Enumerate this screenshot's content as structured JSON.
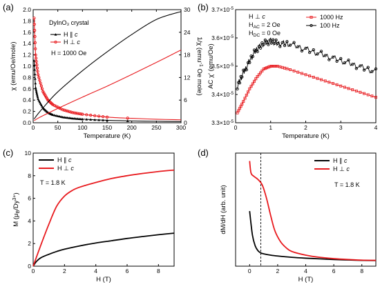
{
  "chart_data": [
    {
      "panel": "(a)",
      "type": "line",
      "xlabel": "Temperature (K)",
      "ylabel": "χ (emu/Oe/mole)",
      "ylabel_right": "1/χ (emu⁻¹ Oe mole)",
      "xlim": [
        0,
        300
      ],
      "ylim": [
        0,
        2.0
      ],
      "ylim_right": [
        0,
        30
      ],
      "xticks": [
        "0",
        "50",
        "100",
        "150",
        "200",
        "250",
        "300"
      ],
      "yticks": [
        "0.0",
        "0.2",
        "0.4",
        "0.6",
        "0.8",
        "1.0",
        "1.2",
        "1.4",
        "1.6",
        "1.8",
        "2.0"
      ],
      "yticks_right": [
        "0",
        "6",
        "12",
        "18",
        "24",
        "30"
      ],
      "annotations": [
        "DyInO₃ crystal",
        "H = 1000 Oe"
      ],
      "legend": [
        "H ∥ c",
        "H ⊥ c"
      ],
      "legend_position": "top-left",
      "series": [
        {
          "name": "H ∥ c",
          "axis": "left",
          "color": "#000000",
          "marker": "triangle",
          "x": [
            2,
            5,
            10,
            20,
            30,
            40,
            60,
            80,
            100,
            150,
            200,
            250,
            300
          ],
          "y": [
            1.1,
            0.62,
            0.42,
            0.26,
            0.18,
            0.14,
            0.1,
            0.078,
            0.064,
            0.043,
            0.032,
            0.026,
            0.021
          ]
        },
        {
          "name": "H ⊥ c",
          "axis": "left",
          "color": "#e8191d",
          "marker": "circle",
          "x": [
            2,
            5,
            10,
            20,
            30,
            40,
            60,
            80,
            100,
            150,
            200,
            250,
            300
          ],
          "y": [
            1.85,
            1.2,
            0.85,
            0.55,
            0.4,
            0.32,
            0.23,
            0.18,
            0.15,
            0.1,
            0.078,
            0.062,
            0.052
          ]
        },
        {
          "name": "1/χ H ∥ c",
          "axis": "right",
          "color": "#000000",
          "x": [
            2,
            10,
            25,
            50,
            100,
            150,
            200,
            250,
            300
          ],
          "y": [
            1.0,
            2.4,
            4.7,
            8.2,
            13.8,
            18.8,
            23.4,
            27.4,
            29.5
          ]
        },
        {
          "name": "1/χ H ⊥ c",
          "axis": "right",
          "color": "#e8191d",
          "x": [
            2,
            10,
            25,
            50,
            100,
            150,
            200,
            250,
            300
          ],
          "y": [
            0.55,
            1.2,
            2.2,
            3.8,
            6.8,
            9.7,
            12.8,
            16.0,
            19.3
          ]
        }
      ]
    },
    {
      "panel": "(b)",
      "type": "line",
      "xlabel": "Temperature (K)",
      "ylabel": "AC χ' (emu/Oe)",
      "xlim": [
        0,
        4
      ],
      "ylim": [
        3.3e-05,
        3.7e-05
      ],
      "xticks": [
        "0",
        "1",
        "2",
        "3",
        "4"
      ],
      "yticks": [
        "3.3×10⁻⁵",
        "3.4×10⁻⁵",
        "3.5×10⁻⁵",
        "3.6×10⁻⁵",
        "3.7×10⁻⁵"
      ],
      "annotations": [
        "H ⊥ c",
        "H_AC = 2 Oe",
        "H_DC = 0 Oe"
      ],
      "legend": [
        "1000 Hz",
        "100 Hz"
      ],
      "legend_position": "top-right",
      "series": [
        {
          "name": "1000 Hz",
          "color": "#e8191d",
          "marker": "square",
          "x": [
            0.05,
            0.2,
            0.4,
            0.6,
            0.8,
            1.0,
            1.2,
            1.5,
            2.0,
            2.5,
            3.0,
            3.5,
            4.0
          ],
          "y": [
            3.335e-05,
            3.37e-05,
            3.42e-05,
            3.46e-05,
            3.49e-05,
            3.5e-05,
            3.5e-05,
            3.49e-05,
            3.47e-05,
            3.45e-05,
            3.43e-05,
            3.41e-05,
            3.39e-05
          ]
        },
        {
          "name": "100 Hz",
          "color": "#000000",
          "marker": "circle",
          "x": [
            0.05,
            0.2,
            0.4,
            0.6,
            0.8,
            1.0,
            1.2,
            1.5,
            2.0,
            2.5,
            3.0,
            3.5,
            4.0
          ],
          "y": [
            3.43e-05,
            3.47e-05,
            3.52e-05,
            3.56e-05,
            3.58e-05,
            3.59e-05,
            3.58e-05,
            3.58e-05,
            3.56e-05,
            3.54e-05,
            3.52e-05,
            3.5e-05,
            3.48e-05
          ]
        }
      ]
    },
    {
      "panel": "(c)",
      "type": "line",
      "xlabel": "H (T)",
      "ylabel": "M (μB/Dy³⁺)",
      "xlim": [
        0,
        9
      ],
      "ylim": [
        0,
        10
      ],
      "xticks": [
        "0",
        "2",
        "4",
        "6",
        "8"
      ],
      "yticks": [
        "0",
        "2",
        "4",
        "6",
        "8",
        "10"
      ],
      "annotations": [
        "T = 1.8 K"
      ],
      "legend": [
        "H ∥ c",
        "H ⊥ c"
      ],
      "legend_position": "top-left",
      "series": [
        {
          "name": "H ∥ c",
          "color": "#000000",
          "x": [
            0,
            0.2,
            0.5,
            1,
            1.5,
            2,
            3,
            4,
            5,
            6,
            7,
            8,
            9
          ],
          "y": [
            0,
            0.4,
            0.75,
            1.05,
            1.3,
            1.5,
            1.8,
            2.05,
            2.25,
            2.45,
            2.62,
            2.78,
            2.92
          ]
        },
        {
          "name": "H ⊥ c",
          "color": "#e8191d",
          "x": [
            0,
            0.5,
            1,
            1.5,
            2,
            2.5,
            3,
            4,
            5,
            6,
            7,
            8,
            9
          ],
          "y": [
            0,
            1.9,
            3.7,
            5.3,
            6.2,
            6.7,
            7.0,
            7.4,
            7.75,
            8.0,
            8.2,
            8.37,
            8.5
          ]
        }
      ]
    },
    {
      "panel": "(d)",
      "type": "line",
      "xlabel": "H (T)",
      "ylabel": "dM/dH (arb. unit)",
      "xlim": [
        -1,
        9
      ],
      "xticks": [
        "0",
        "2",
        "4",
        "6",
        "8"
      ],
      "annotations": [
        "T = 1.8 K"
      ],
      "legend": [
        "H ∥ c",
        "H ⊥ c"
      ],
      "legend_position": "top-right",
      "reference_line_x": 0.8,
      "series": [
        {
          "name": "H ∥ c",
          "color": "#000000",
          "x": [
            0,
            0.2,
            0.4,
            0.6,
            0.8,
            1.0,
            1.5,
            2,
            3,
            4,
            5,
            6,
            7,
            8,
            9
          ],
          "y": [
            2.4,
            1.3,
            0.8,
            0.58,
            0.48,
            0.44,
            0.38,
            0.34,
            0.28,
            0.24,
            0.21,
            0.18,
            0.16,
            0.14,
            0.13
          ]
        },
        {
          "name": "H ⊥ c",
          "color": "#e8191d",
          "x": [
            0,
            0.1,
            0.3,
            0.6,
            0.9,
            1.2,
            1.5,
            1.8,
            2.2,
            2.6,
            3,
            4,
            5,
            6,
            7,
            8,
            9
          ],
          "y": [
            4.7,
            4.15,
            4.0,
            3.85,
            3.6,
            3.0,
            2.2,
            1.5,
            1.0,
            0.72,
            0.55,
            0.38,
            0.28,
            0.22,
            0.18,
            0.15,
            0.14
          ]
        }
      ]
    }
  ]
}
